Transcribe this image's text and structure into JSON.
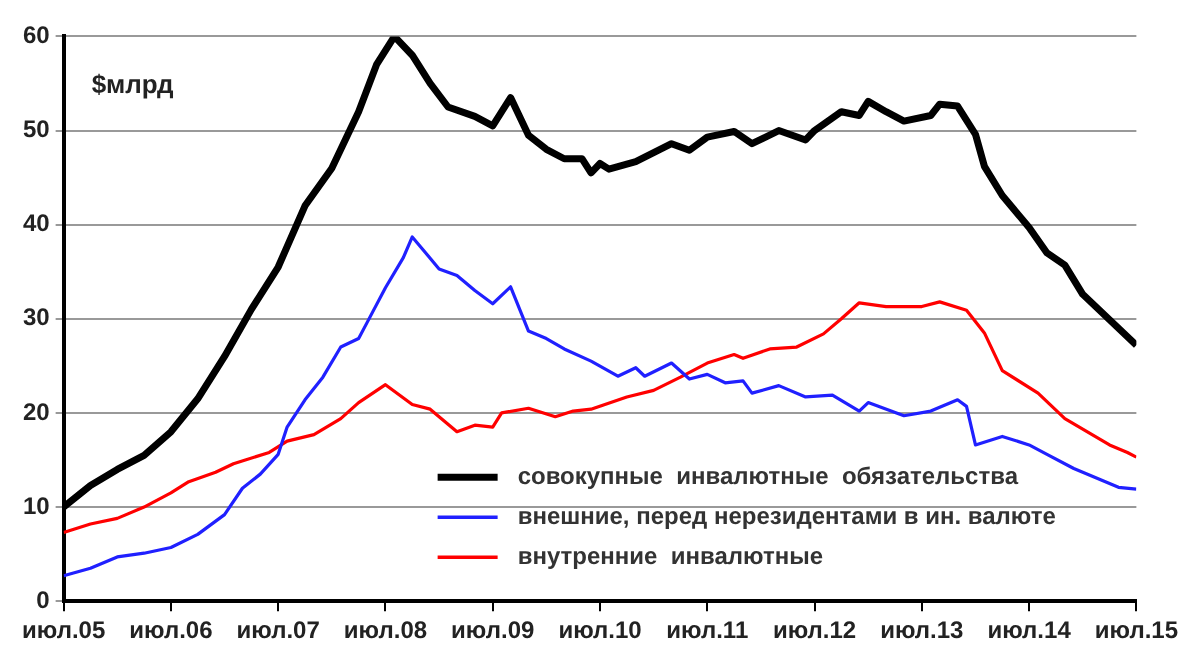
{
  "chart_data": {
    "type": "line",
    "ylabel": "$млрд",
    "xlim": [
      "2005-07",
      "2015-07"
    ],
    "xticks": [
      {
        "value": "2005-07",
        "label": "июл.05"
      },
      {
        "value": "2006-07",
        "label": "июл.06"
      },
      {
        "value": "2007-07",
        "label": "июл.07"
      },
      {
        "value": "2008-07",
        "label": "июл.08"
      },
      {
        "value": "2009-07",
        "label": "июл.09"
      },
      {
        "value": "2010-07",
        "label": "июл.10"
      },
      {
        "value": "2011-07",
        "label": "июл.11"
      },
      {
        "value": "2012-07",
        "label": "июл.12"
      },
      {
        "value": "2013-07",
        "label": "июл.13"
      },
      {
        "value": "2014-07",
        "label": "июл.14"
      },
      {
        "value": "2015-07",
        "label": "июл.15"
      }
    ],
    "ylim": [
      0,
      60
    ],
    "yticks": [
      0,
      10,
      20,
      30,
      40,
      50,
      60
    ],
    "grid": "y",
    "legend": "bottom right",
    "marker": "none",
    "line_style": "solid",
    "series": [
      {
        "name": "совокупные  инвалютные  обязательства",
        "color": "#000000",
        "x": [
          "2005-07",
          "2005-10",
          "2006-01",
          "2006-04",
          "2006-07",
          "2006-10",
          "2007-01",
          "2007-04",
          "2007-07",
          "2007-10",
          "2008-01",
          "2008-04",
          "2008-06",
          "2008-08",
          "2008-10",
          "2008-12",
          "2009-02",
          "2009-05",
          "2009-07",
          "2009-09",
          "2009-11",
          "2010-01",
          "2010-03",
          "2010-05",
          "2010-06",
          "2010-07",
          "2010-08",
          "2010-11",
          "2011-03",
          "2011-05",
          "2011-07",
          "2011-10",
          "2011-12",
          "2012-03",
          "2012-06",
          "2012-07",
          "2012-10",
          "2012-12",
          "2013-01",
          "2013-03",
          "2013-05",
          "2013-08",
          "2013-09",
          "2013-11",
          "2014-01",
          "2014-02",
          "2014-04",
          "2014-07",
          "2014-09",
          "2014-11",
          "2015-01",
          "2015-04",
          "2015-07"
        ],
        "values": [
          10,
          12.3,
          14,
          15.5,
          18,
          21.5,
          26,
          31,
          35.5,
          42,
          46,
          52,
          57,
          60,
          58,
          55,
          52.5,
          51.5,
          50.5,
          53.5,
          49.5,
          48,
          47,
          47,
          45.5,
          46.5,
          45.9,
          46.7,
          48.6,
          47.9,
          49.3,
          49.9,
          48.6,
          50,
          49,
          50,
          52,
          51.6,
          53.1,
          52,
          51,
          51.6,
          52.8,
          52.6,
          49.6,
          46.2,
          43.1,
          39.7,
          37,
          35.7,
          32.6,
          29.9,
          27.2
        ]
      },
      {
        "name": "внешние, перед нерезидентами в ин. валюте",
        "color": "#2020ff",
        "x": [
          "2005-07",
          "2005-10",
          "2006-01",
          "2006-04",
          "2006-07",
          "2006-10",
          "2007-01",
          "2007-03",
          "2007-05",
          "2007-07",
          "2007-08",
          "2007-10",
          "2007-12",
          "2008-02",
          "2008-04",
          "2008-05",
          "2008-07",
          "2008-09",
          "2008-10",
          "2009-01",
          "2009-03",
          "2009-05",
          "2009-07",
          "2009-09",
          "2009-11",
          "2010-01",
          "2010-03",
          "2010-06",
          "2010-09",
          "2010-11",
          "2010-12",
          "2011-03",
          "2011-05",
          "2011-07",
          "2011-09",
          "2011-11",
          "2011-12",
          "2012-03",
          "2012-06",
          "2012-09",
          "2012-12",
          "2013-01",
          "2013-05",
          "2013-08",
          "2013-11",
          "2013-12",
          "2014-01",
          "2014-04",
          "2014-07",
          "2014-09",
          "2014-12",
          "2015-03",
          "2015-05",
          "2015-07"
        ],
        "values": [
          2.7,
          3.5,
          4.7,
          5.1,
          5.7,
          7.1,
          9.2,
          12,
          13.5,
          15.6,
          18.5,
          21.4,
          23.8,
          27,
          27.9,
          29.7,
          33.3,
          36.5,
          38.7,
          35.3,
          34.6,
          33,
          31.6,
          33.4,
          28.7,
          27.9,
          26.8,
          25.5,
          23.9,
          24.8,
          23.9,
          25.3,
          23.6,
          24.1,
          23.2,
          23.4,
          22.1,
          22.9,
          21.7,
          21.9,
          20.2,
          21.1,
          19.7,
          20.2,
          21.4,
          20.7,
          16.6,
          17.5,
          16.6,
          15.6,
          14.1,
          12.9,
          12.1,
          11.9
        ]
      },
      {
        "name": "внутренние  инвалютные",
        "color": "#ff0000",
        "x": [
          "2005-07",
          "2005-10",
          "2006-01",
          "2006-04",
          "2006-07",
          "2006-09",
          "2006-12",
          "2007-02",
          "2007-06",
          "2007-08",
          "2007-11",
          "2008-02",
          "2008-04",
          "2008-07",
          "2008-10",
          "2008-12",
          "2009-03",
          "2009-05",
          "2009-07",
          "2009-08",
          "2009-11",
          "2010-02",
          "2010-04",
          "2010-06",
          "2010-10",
          "2011-01",
          "2011-04",
          "2011-07",
          "2011-10",
          "2011-11",
          "2012-02",
          "2012-05",
          "2012-08",
          "2012-10",
          "2012-12",
          "2013-03",
          "2013-07",
          "2013-09",
          "2013-12",
          "2014-02",
          "2014-04",
          "2014-08",
          "2014-11",
          "2015-04",
          "2015-06",
          "2015-07"
        ],
        "values": [
          7.3,
          8.2,
          8.8,
          10,
          11.5,
          12.7,
          13.7,
          14.6,
          15.8,
          17,
          17.7,
          19.4,
          21.1,
          23,
          20.9,
          20.4,
          18,
          18.7,
          18.5,
          20,
          20.5,
          19.6,
          20.2,
          20.4,
          21.7,
          22.4,
          23.8,
          25.3,
          26.2,
          25.8,
          26.8,
          27,
          28.4,
          30,
          31.7,
          31.3,
          31.3,
          31.8,
          30.9,
          28.5,
          24.5,
          22.1,
          19.4,
          16.6,
          15.8,
          15.3
        ]
      }
    ]
  }
}
